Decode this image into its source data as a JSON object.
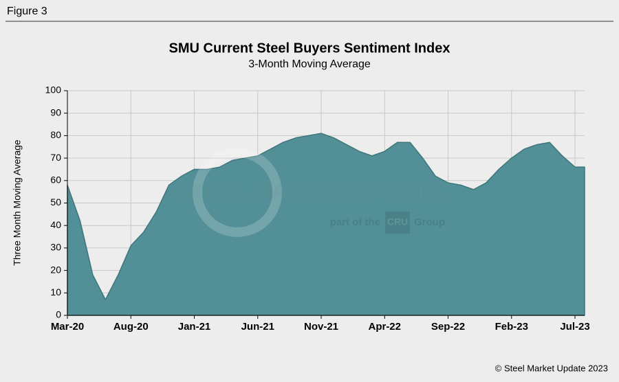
{
  "figure_label": "Figure 3",
  "copyright": "© Steel Market Update 2023",
  "watermark": {
    "brand": "STEEL MARKET UPDATE",
    "tagline_pre": "part of the",
    "logo": "CRU",
    "tagline_post": "Group"
  },
  "chart_data": {
    "type": "area",
    "title": "SMU Current Steel Buyers Sentiment Index",
    "subtitle": "3-Month Moving Average",
    "y_label": "Three Month Moving Average",
    "categories": [
      "Mar-20",
      null,
      null,
      null,
      null,
      "Aug-20",
      null,
      null,
      null,
      null,
      "Jan-21",
      null,
      null,
      null,
      null,
      "Jun-21",
      null,
      null,
      null,
      null,
      "Nov-21",
      null,
      null,
      null,
      null,
      "Apr-22",
      null,
      null,
      null,
      null,
      "Sep-22",
      null,
      null,
      null,
      null,
      "Feb-23",
      null,
      null,
      null,
      null,
      "Jul-23"
    ],
    "values": [
      58,
      42,
      18,
      7,
      18,
      31,
      37,
      46,
      58,
      62,
      65,
      65,
      66,
      69,
      70,
      71,
      74,
      77,
      79,
      80,
      81,
      79,
      76,
      73,
      71,
      73,
      77,
      77,
      70,
      62,
      59,
      58,
      56,
      59,
      65,
      70,
      74,
      76,
      77,
      71,
      66
    ],
    "color": "#528f96",
    "ylim": [
      0,
      100
    ],
    "yticks": [
      0,
      10,
      20,
      30,
      40,
      50,
      60,
      70,
      80,
      90,
      100
    ],
    "grid": true
  }
}
